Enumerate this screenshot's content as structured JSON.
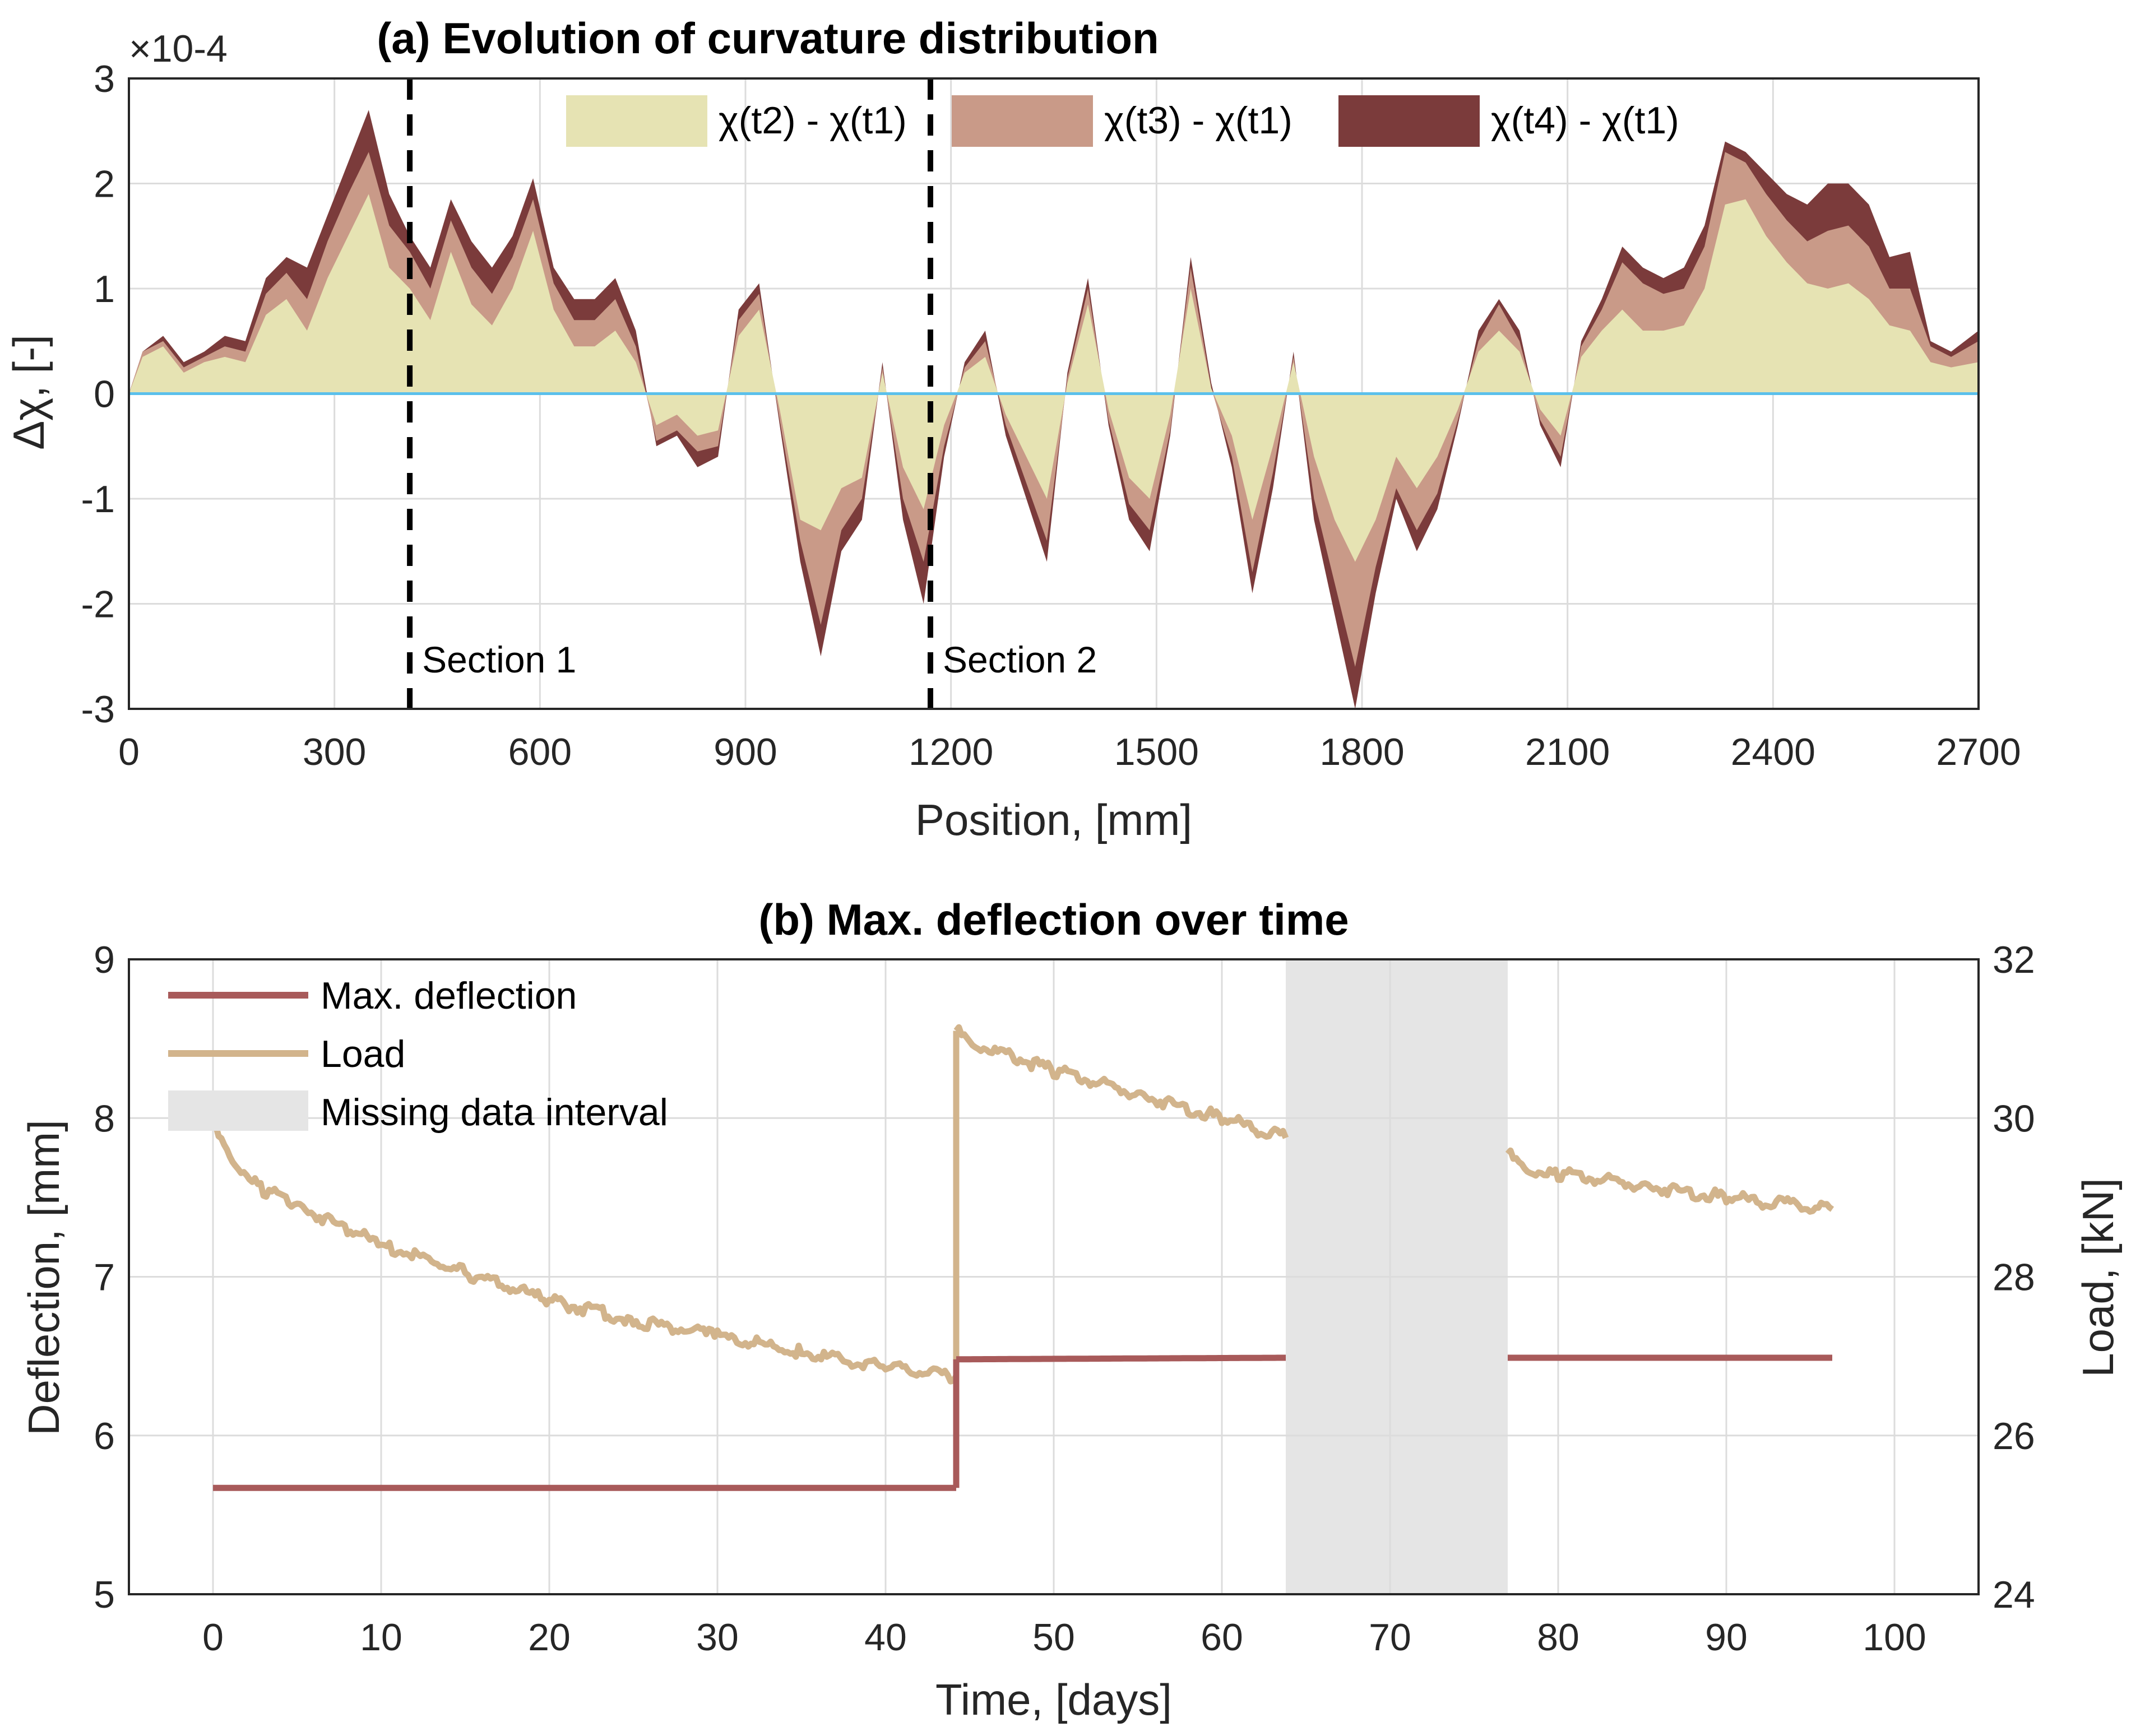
{
  "chart_data": [
    {
      "type": "area",
      "title": "(a) Evolution of curvature distribution",
      "xlabel": "Position, [mm]",
      "ylabel": "Δχ, [-]",
      "y_exponent": "×10-4",
      "xlim": [
        0,
        2700
      ],
      "ylim": [
        -3,
        3
      ],
      "xticks": [
        "0",
        "300",
        "600",
        "900",
        "1200",
        "1500",
        "1800",
        "2100",
        "2400",
        "2700"
      ],
      "yticks": [
        "3",
        "2",
        "1",
        "0",
        "-1",
        "-2",
        "-3"
      ],
      "vlines": [
        {
          "x": 410,
          "label": "Section 1"
        },
        {
          "x": 1170,
          "label": "Section 2"
        }
      ],
      "x": [
        0,
        20,
        50,
        80,
        110,
        140,
        170,
        200,
        230,
        260,
        290,
        320,
        350,
        380,
        410,
        440,
        470,
        500,
        530,
        560,
        590,
        620,
        650,
        680,
        710,
        740,
        770,
        800,
        830,
        860,
        890,
        920,
        950,
        980,
        1010,
        1040,
        1070,
        1100,
        1130,
        1160,
        1190,
        1220,
        1250,
        1280,
        1310,
        1340,
        1370,
        1400,
        1430,
        1460,
        1490,
        1520,
        1550,
        1580,
        1610,
        1640,
        1670,
        1700,
        1730,
        1760,
        1790,
        1820,
        1850,
        1880,
        1910,
        1940,
        1970,
        2000,
        2030,
        2060,
        2090,
        2120,
        2150,
        2180,
        2210,
        2240,
        2270,
        2300,
        2330,
        2360,
        2390,
        2420,
        2450,
        2480,
        2510,
        2540,
        2570,
        2600,
        2630,
        2660,
        2700
      ],
      "series": [
        {
          "name": "χ(t4) - χ(t1)",
          "color": "#7b3b3b",
          "values": [
            0.0,
            0.4,
            0.55,
            0.3,
            0.4,
            0.55,
            0.5,
            1.1,
            1.3,
            1.2,
            1.7,
            2.2,
            2.7,
            1.9,
            1.5,
            1.2,
            1.85,
            1.45,
            1.2,
            1.5,
            2.05,
            1.2,
            0.9,
            0.9,
            1.1,
            0.6,
            -0.5,
            -0.4,
            -0.7,
            -0.6,
            0.8,
            1.05,
            -0.3,
            -1.6,
            -2.5,
            -1.5,
            -1.2,
            0.3,
            -1.2,
            -2.0,
            -0.6,
            0.3,
            0.6,
            -0.4,
            -1.0,
            -1.6,
            0.2,
            1.1,
            -0.3,
            -1.2,
            -1.5,
            -0.4,
            1.3,
            0.1,
            -0.7,
            -1.9,
            -0.9,
            0.4,
            -1.2,
            -2.1,
            -3.0,
            -1.9,
            -1.0,
            -1.5,
            -1.1,
            -0.3,
            0.6,
            0.9,
            0.6,
            -0.3,
            -0.7,
            0.5,
            0.9,
            1.4,
            1.2,
            1.1,
            1.2,
            1.6,
            2.4,
            2.3,
            2.1,
            1.9,
            1.8,
            2.0,
            2.0,
            1.8,
            1.3,
            1.35,
            0.5,
            0.4,
            0.6
          ]
        },
        {
          "name": "χ(t3) - χ(t1)",
          "color": "#c99a88",
          "values": [
            0.0,
            0.4,
            0.5,
            0.25,
            0.35,
            0.45,
            0.4,
            0.95,
            1.15,
            0.9,
            1.45,
            1.9,
            2.3,
            1.6,
            1.35,
            1.0,
            1.65,
            1.2,
            0.95,
            1.3,
            1.85,
            1.05,
            0.7,
            0.7,
            0.9,
            0.45,
            -0.45,
            -0.35,
            -0.55,
            -0.5,
            0.7,
            0.95,
            -0.25,
            -1.4,
            -2.2,
            -1.3,
            -1.0,
            0.25,
            -1.0,
            -1.6,
            -0.5,
            0.25,
            0.5,
            -0.3,
            -0.85,
            -1.4,
            0.15,
            1.0,
            -0.25,
            -1.05,
            -1.3,
            -0.35,
            1.2,
            0.05,
            -0.6,
            -1.7,
            -0.75,
            0.35,
            -1.0,
            -1.8,
            -2.6,
            -1.65,
            -0.9,
            -1.3,
            -0.95,
            -0.25,
            0.5,
            0.85,
            0.5,
            -0.25,
            -0.6,
            0.45,
            0.8,
            1.25,
            1.05,
            0.95,
            1.0,
            1.4,
            2.3,
            2.2,
            1.9,
            1.65,
            1.45,
            1.55,
            1.6,
            1.4,
            1.0,
            1.0,
            0.45,
            0.35,
            0.5
          ]
        },
        {
          "name": "χ(t2) - χ(t1)",
          "color": "#e6e3b3",
          "values": [
            0.0,
            0.35,
            0.45,
            0.2,
            0.3,
            0.35,
            0.3,
            0.75,
            0.9,
            0.6,
            1.1,
            1.5,
            1.9,
            1.2,
            1.0,
            0.7,
            1.35,
            0.85,
            0.65,
            1.0,
            1.55,
            0.8,
            0.45,
            0.45,
            0.6,
            0.3,
            -0.3,
            -0.2,
            -0.4,
            -0.35,
            0.55,
            0.8,
            -0.15,
            -1.2,
            -1.3,
            -0.9,
            -0.8,
            0.2,
            -0.7,
            -1.1,
            -0.3,
            0.2,
            0.35,
            -0.2,
            -0.6,
            -1.0,
            0.1,
            0.85,
            -0.15,
            -0.8,
            -1.0,
            -0.2,
            1.0,
            0.05,
            -0.4,
            -1.2,
            -0.5,
            0.3,
            -0.6,
            -1.2,
            -1.6,
            -1.2,
            -0.6,
            -0.9,
            -0.6,
            -0.15,
            0.4,
            0.6,
            0.4,
            -0.15,
            -0.4,
            0.35,
            0.6,
            0.8,
            0.6,
            0.6,
            0.65,
            1.0,
            1.8,
            1.85,
            1.5,
            1.25,
            1.05,
            1.0,
            1.05,
            0.9,
            0.65,
            0.6,
            0.3,
            0.25,
            0.3
          ]
        }
      ],
      "legend": [
        {
          "label": "χ(t2) - χ(t1)",
          "color": "#e6e3b3"
        },
        {
          "label": "χ(t3) - χ(t1)",
          "color": "#c99a88"
        },
        {
          "label": "χ(t4) - χ(t1)",
          "color": "#7b3b3b"
        }
      ],
      "legend_position": "top-center"
    },
    {
      "type": "line",
      "title": "(b) Max. deflection over time",
      "xlabel": "Time, [days]",
      "ylabel": "Deflection, [mm]",
      "y2label": "Load, [kN]",
      "xlim": [
        -5,
        105
      ],
      "ylim": [
        5,
        9
      ],
      "y2lim": [
        24,
        32
      ],
      "xticks": [
        "0",
        "10",
        "20",
        "30",
        "40",
        "50",
        "60",
        "70",
        "80",
        "90",
        "100"
      ],
      "yticks": [
        "9",
        "8",
        "7",
        "6",
        "5"
      ],
      "y2ticks": [
        "32",
        "30",
        "28",
        "26",
        "24"
      ],
      "missing_interval": [
        63.8,
        77
      ],
      "series": [
        {
          "name": "Max. deflection",
          "axis": "left",
          "color": "#a85a5a",
          "segments": [
            {
              "x": [
                0,
                44.2
              ],
              "y": [
                5.67,
                5.67
              ]
            },
            {
              "x": [
                44.2,
                44.2
              ],
              "y": [
                5.67,
                6.48
              ]
            },
            {
              "x": [
                44.2,
                63.8
              ],
              "y": [
                6.48,
                6.49
              ]
            },
            {
              "x": [
                77,
                96.3
              ],
              "y": [
                6.49,
                6.49
              ]
            }
          ]
        },
        {
          "name": "Load",
          "axis": "right",
          "color": "#d2b48c",
          "segments": [
            {
              "x": [
                0,
                1,
                3,
                5,
                8,
                10,
                15,
                20,
                25,
                30,
                35,
                40,
                44.2
              ],
              "y": [
                29.9,
                29.5,
                29.1,
                28.9,
                28.6,
                28.4,
                28.05,
                27.7,
                27.45,
                27.25,
                27.05,
                26.85,
                26.75
              ]
            },
            {
              "x": [
                44.2,
                44.2
              ],
              "y": [
                26.75,
                31.1
              ]
            },
            {
              "x": [
                44.2,
                45,
                50,
                55,
                60,
                63.8
              ],
              "y": [
                31.1,
                30.95,
                30.6,
                30.3,
                30.0,
                29.75
              ]
            },
            {
              "x": [
                77,
                78,
                80,
                85,
                90,
                96.3
              ],
              "y": [
                29.55,
                29.35,
                29.3,
                29.15,
                29.0,
                28.85
              ]
            }
          ]
        }
      ],
      "legend": [
        {
          "label": "Max. deflection",
          "color": "#a85a5a",
          "kind": "line"
        },
        {
          "label": "Load",
          "color": "#d2b48c",
          "kind": "line"
        },
        {
          "label": "Missing data interval",
          "color": "#e5e5e5",
          "kind": "patch"
        }
      ],
      "legend_position": "top-left"
    }
  ]
}
